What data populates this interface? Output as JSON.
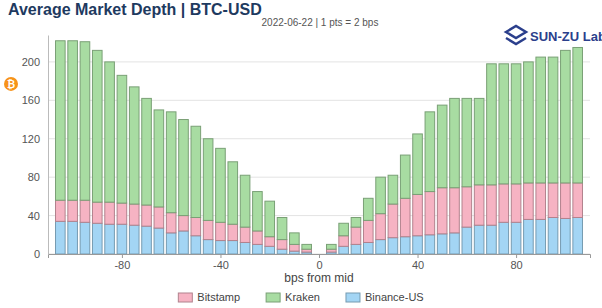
{
  "chart_data": {
    "type": "bar",
    "stacked": true,
    "title": "Average Market Depth | BTC-USD",
    "subtitle": "2022-06-22 | 1 pts = 2 bps",
    "annotations": [
      "SUN-ZU Lab"
    ],
    "xlabel": "bps from mid",
    "ylabel": "₿",
    "x": [
      -105,
      -100,
      -95,
      -90,
      -85,
      -80,
      -75,
      -70,
      -65,
      -60,
      -55,
      -50,
      -45,
      -40,
      -35,
      -30,
      -25,
      -20,
      -15,
      -10,
      -5,
      5,
      10,
      15,
      20,
      25,
      30,
      35,
      40,
      45,
      50,
      55,
      60,
      65,
      70,
      75,
      80,
      85,
      90,
      95,
      100,
      105
    ],
    "xlim": [
      -110,
      110
    ],
    "xticks": [
      -80,
      -40,
      0,
      40,
      80
    ],
    "ylim": [
      0,
      228
    ],
    "yticks": [
      0,
      40,
      80,
      120,
      160,
      200
    ],
    "grid": true,
    "legend": "bottom",
    "series": [
      {
        "name": "Bitstamp",
        "color": "#f6b3c3",
        "values": [
          22,
          22,
          23,
          22,
          23,
          22,
          22,
          22,
          22,
          21,
          16,
          19,
          20,
          19,
          17,
          16,
          14,
          10,
          10,
          7,
          3,
          3,
          11,
          18,
          23,
          27,
          35,
          40,
          43,
          45,
          48,
          47,
          42,
          42,
          42,
          40,
          40,
          38,
          38,
          36,
          37,
          36
        ]
      },
      {
        "name": "Kraken",
        "color": "#a8dca2",
        "values": [
          166,
          166,
          165,
          158,
          146,
          133,
          122,
          111,
          101,
          105,
          100,
          95,
          85,
          77,
          65,
          54,
          41,
          37,
          23,
          12,
          5,
          5,
          13,
          10,
          23,
          38,
          30,
          45,
          63,
          83,
          86,
          93,
          92,
          90,
          126,
          125,
          125,
          126,
          131,
          131,
          138,
          141
        ]
      },
      {
        "name": "Binance-US",
        "color": "#a3d5f4",
        "values": [
          34,
          34,
          33,
          32,
          31,
          31,
          30,
          29,
          27,
          22,
          24,
          19,
          15,
          14,
          14,
          12,
          10,
          8,
          5,
          3,
          2,
          2,
          8,
          10,
          12,
          15,
          17,
          18,
          19,
          20,
          21,
          22,
          28,
          30,
          30,
          33,
          33,
          36,
          36,
          38,
          37,
          38
        ]
      }
    ]
  }
}
